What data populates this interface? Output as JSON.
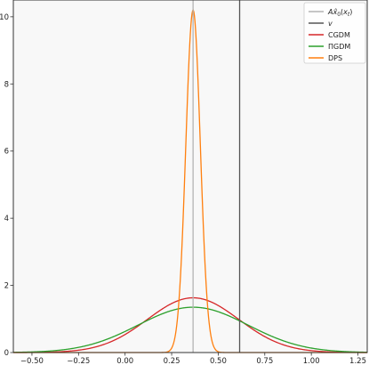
{
  "chart_data": {
    "type": "line",
    "xlim": [
      -0.6,
      1.3
    ],
    "ylim": [
      0,
      10.5
    ],
    "xticks": [
      -0.5,
      -0.25,
      0.0,
      0.25,
      0.5,
      0.75,
      1.0,
      1.25
    ],
    "xtick_labels": [
      "−0.50",
      "−0.25",
      "0.00",
      "0.25",
      "0.50",
      "0.75",
      "1.00",
      "1.25"
    ],
    "yticks": [
      0,
      2,
      4,
      6,
      8,
      10
    ],
    "ytick_labels": [
      "0",
      "2",
      "4",
      "6",
      "8",
      "10"
    ],
    "grid": false,
    "legend_position": "top-right",
    "vlines": [
      {
        "key": "ax0",
        "x": 0.365,
        "color": "#b3b3b3",
        "legend_html": "<tspan font-style=\"italic\">A</tspan><tspan font-style=\"italic\">x̂</tspan><tspan font-size=\"6\" dy=\"2\">0</tspan><tspan dy=\"-2\">(</tspan><tspan font-style=\"italic\">x</tspan><tspan font-size=\"6\" font-style=\"italic\" dy=\"2\">t</tspan><tspan dy=\"-2\">)</tspan>"
      },
      {
        "key": "v",
        "x": 0.615,
        "color": "#555555",
        "label": "v"
      }
    ],
    "series": [
      {
        "name": "CGDM",
        "color": "#d62728",
        "kind": "gaussian",
        "mean": 0.365,
        "std": 0.245,
        "peak": 1.63
      },
      {
        "name": "ΠGDM",
        "color": "#2ca02c",
        "kind": "gaussian",
        "mean": 0.365,
        "std": 0.295,
        "peak": 1.35
      },
      {
        "name": "DPS",
        "color": "#ff7f0e",
        "kind": "gaussian",
        "mean": 0.365,
        "std": 0.039,
        "peak": 10.2
      }
    ]
  }
}
